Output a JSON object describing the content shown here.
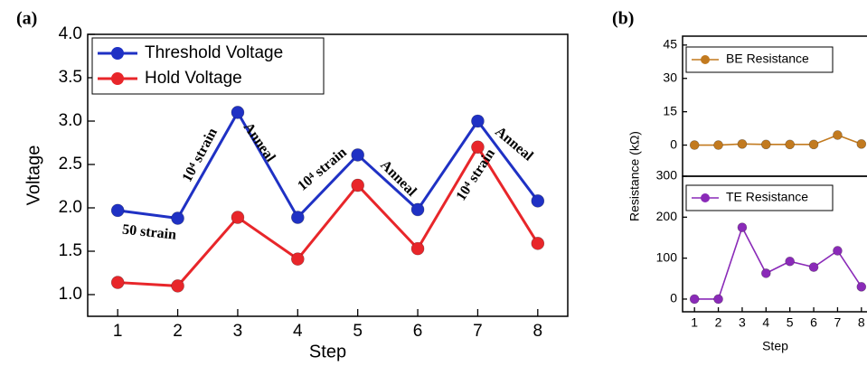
{
  "chart_data": [
    {
      "type": "line",
      "panel_label": "(a)",
      "xlabel": "Step",
      "ylabel": "Voltage",
      "x": [
        1,
        2,
        3,
        4,
        5,
        6,
        7,
        8
      ],
      "xlim": [
        0.5,
        8.5
      ],
      "xticks": [
        1,
        2,
        3,
        4,
        5,
        6,
        7,
        8
      ],
      "ylim": [
        0.75,
        4.0
      ],
      "yticks": [
        {
          "value": 1,
          "label": "1.0"
        },
        1.5,
        {
          "value": 2,
          "label": "2.0"
        },
        2.5,
        {
          "value": 3,
          "label": "3.0"
        },
        3.5,
        {
          "value": 4,
          "label": "4.0"
        }
      ],
      "series": [
        {
          "name": "Threshold Voltage",
          "color": "#1f31c4",
          "values": [
            1.97,
            1.88,
            3.1,
            1.89,
            2.61,
            1.98,
            3.0,
            2.08
          ]
        },
        {
          "name": "Hold Voltage",
          "color": "#e8262a",
          "values": [
            1.14,
            1.1,
            1.89,
            1.41,
            2.26,
            1.53,
            2.7,
            1.59
          ]
        }
      ],
      "annotations": [
        "50 strain",
        "10⁴ strain",
        "Anneal",
        "10⁴ strain",
        "Anneal",
        "10⁴ strain",
        "Anneal"
      ],
      "legend": "upper left"
    },
    {
      "type": "line",
      "panel_label": "(b)",
      "ylabel": "Resistance (kΩ)",
      "x": [
        1,
        2,
        3,
        4,
        5,
        6,
        7,
        8
      ],
      "xlim": [
        0.5,
        8.5
      ],
      "ylim": [
        -14,
        49
      ],
      "yticks": [
        0,
        15,
        30,
        45
      ],
      "series": [
        {
          "name": "BE Resistance",
          "color": "#c27a1f",
          "values": [
            0,
            0,
            0.5,
            0.3,
            0.3,
            0.3,
            4.5,
            0.5
          ]
        }
      ],
      "legend": "upper left"
    },
    {
      "type": "line",
      "xlabel": "Step",
      "x": [
        1,
        2,
        3,
        4,
        5,
        6,
        7,
        8
      ],
      "xlim": [
        0.5,
        8.5
      ],
      "xticks": [
        1,
        2,
        3,
        4,
        5,
        6,
        7,
        8
      ],
      "ylim": [
        -31,
        300
      ],
      "yticks": [
        0,
        100,
        200,
        300
      ],
      "series": [
        {
          "name": "TE Resistance",
          "color": "#8a2ab8",
          "values": [
            0,
            0,
            175,
            63,
            92,
            78,
            118,
            30
          ]
        }
      ],
      "legend": "upper left"
    }
  ]
}
